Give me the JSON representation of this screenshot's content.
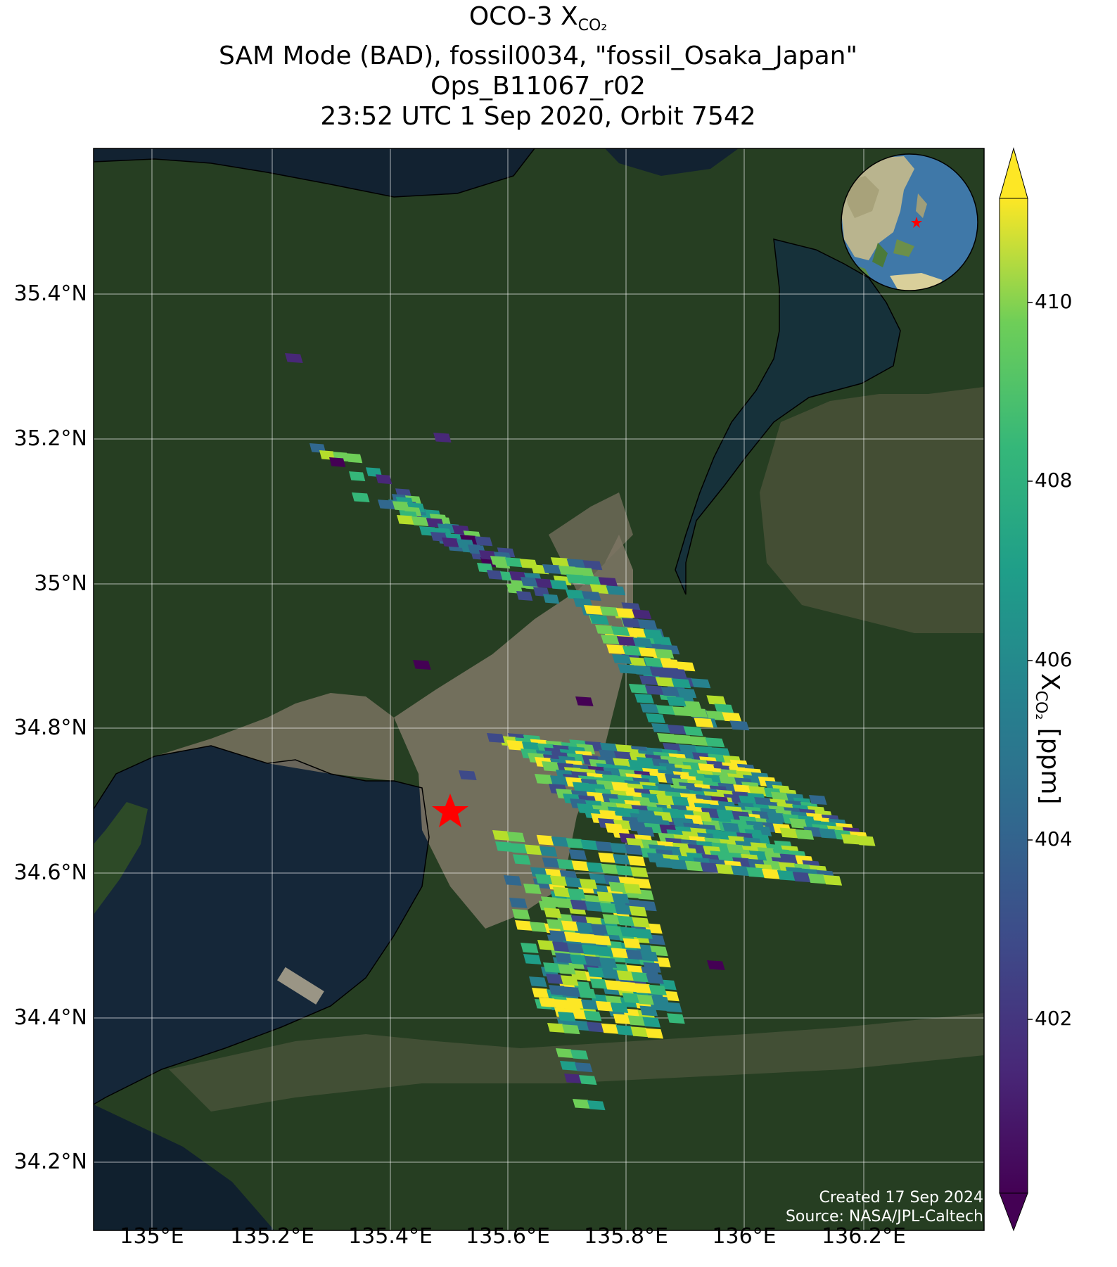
{
  "title": {
    "line1_prefix": "OCO-3 X",
    "line1_sub": "CO₂",
    "line2": "SAM Mode (BAD), fossil0034, \"fossil_Osaka_Japan\"",
    "line3": "Ops_B11067_r02",
    "line4": "23:52 UTC 1 Sep 2020, Orbit 7542"
  },
  "axes": {
    "lon_ticks": [
      "135°E",
      "135.2°E",
      "135.4°E",
      "135.6°E",
      "135.8°E",
      "136°E",
      "136.2°E"
    ],
    "lat_ticks": [
      "35.4°N",
      "35.2°N",
      "35°N",
      "34.8°N",
      "34.6°N",
      "34.4°N",
      "34.2°N"
    ]
  },
  "colorbar": {
    "label_prefix": "X",
    "label_sub": "CO₂",
    "label_suffix": " [ppm]",
    "ticks": [
      "410",
      "408",
      "406",
      "404",
      "402"
    ],
    "min": 400.2,
    "max": 411.3,
    "extend": "both",
    "colormap": "viridis"
  },
  "target": {
    "name": "fossil_Osaka_Japan",
    "marker": "red-star",
    "lon": 135.5,
    "lat": 34.69
  },
  "credits": {
    "created": "Created 17 Sep 2024",
    "source": "Source: NASA/JPL-Caltech"
  },
  "inset_globe": {
    "marker": "red-star"
  },
  "colors": {
    "target_marker": "#ff0000",
    "water": "#10202e",
    "land": "#24401f",
    "urban": "#8a8070",
    "grid": "#ffffff"
  }
}
